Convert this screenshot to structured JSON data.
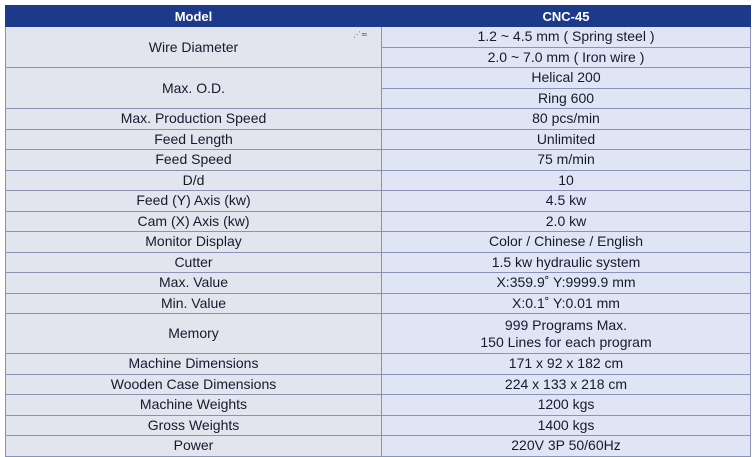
{
  "header": {
    "model_label": "Model",
    "model_value": "CNC-45"
  },
  "rows": [
    {
      "label": "Wire Diameter",
      "values": [
        "1.2 ~ 4.5 mm ( Spring steel )",
        "2.0 ~ 7.0 mm ( Iron wire )"
      ],
      "mode": "split"
    },
    {
      "label": "Max. O.D.",
      "values": [
        "Helical 200",
        "Ring 600"
      ],
      "mode": "split"
    },
    {
      "label": "Max. Production Speed",
      "values": [
        "80 pcs/min"
      ]
    },
    {
      "label": "Feed Length",
      "values": [
        "Unlimited"
      ]
    },
    {
      "label": "Feed Speed",
      "values": [
        "75 m/min"
      ]
    },
    {
      "label": "D/d",
      "values": [
        "10"
      ]
    },
    {
      "label": "Feed (Y) Axis (kw)",
      "values": [
        "4.5 kw"
      ]
    },
    {
      "label": "Cam (X) Axis (kw)",
      "values": [
        "2.0 kw"
      ]
    },
    {
      "label": "Monitor Display",
      "values": [
        "Color / Chinese / English"
      ]
    },
    {
      "label": "Cutter",
      "values": [
        "1.5 kw hydraulic system"
      ]
    },
    {
      "label": "Max. Value",
      "values": [
        "X:359.9˚ Y:9999.9 mm"
      ]
    },
    {
      "label": "Min. Value",
      "values": [
        "X:0.1˚ Y:0.01 mm"
      ]
    },
    {
      "label": "Memory",
      "values": [
        "999 Programs Max.",
        "150 Lines for each program"
      ],
      "mode": "stack"
    },
    {
      "label": "Machine Dimensions",
      "values": [
        "171 x 92 x 182 cm"
      ]
    },
    {
      "label": "Wooden Case Dimensions",
      "values": [
        "224 x 133 x 218 cm"
      ]
    },
    {
      "label": "Machine Weights",
      "values": [
        "1200 kgs"
      ]
    },
    {
      "label": "Gross Weights",
      "values": [
        "1400 kgs"
      ]
    },
    {
      "label": "Power",
      "values": [
        "220V 3P 50/60Hz"
      ]
    }
  ]
}
